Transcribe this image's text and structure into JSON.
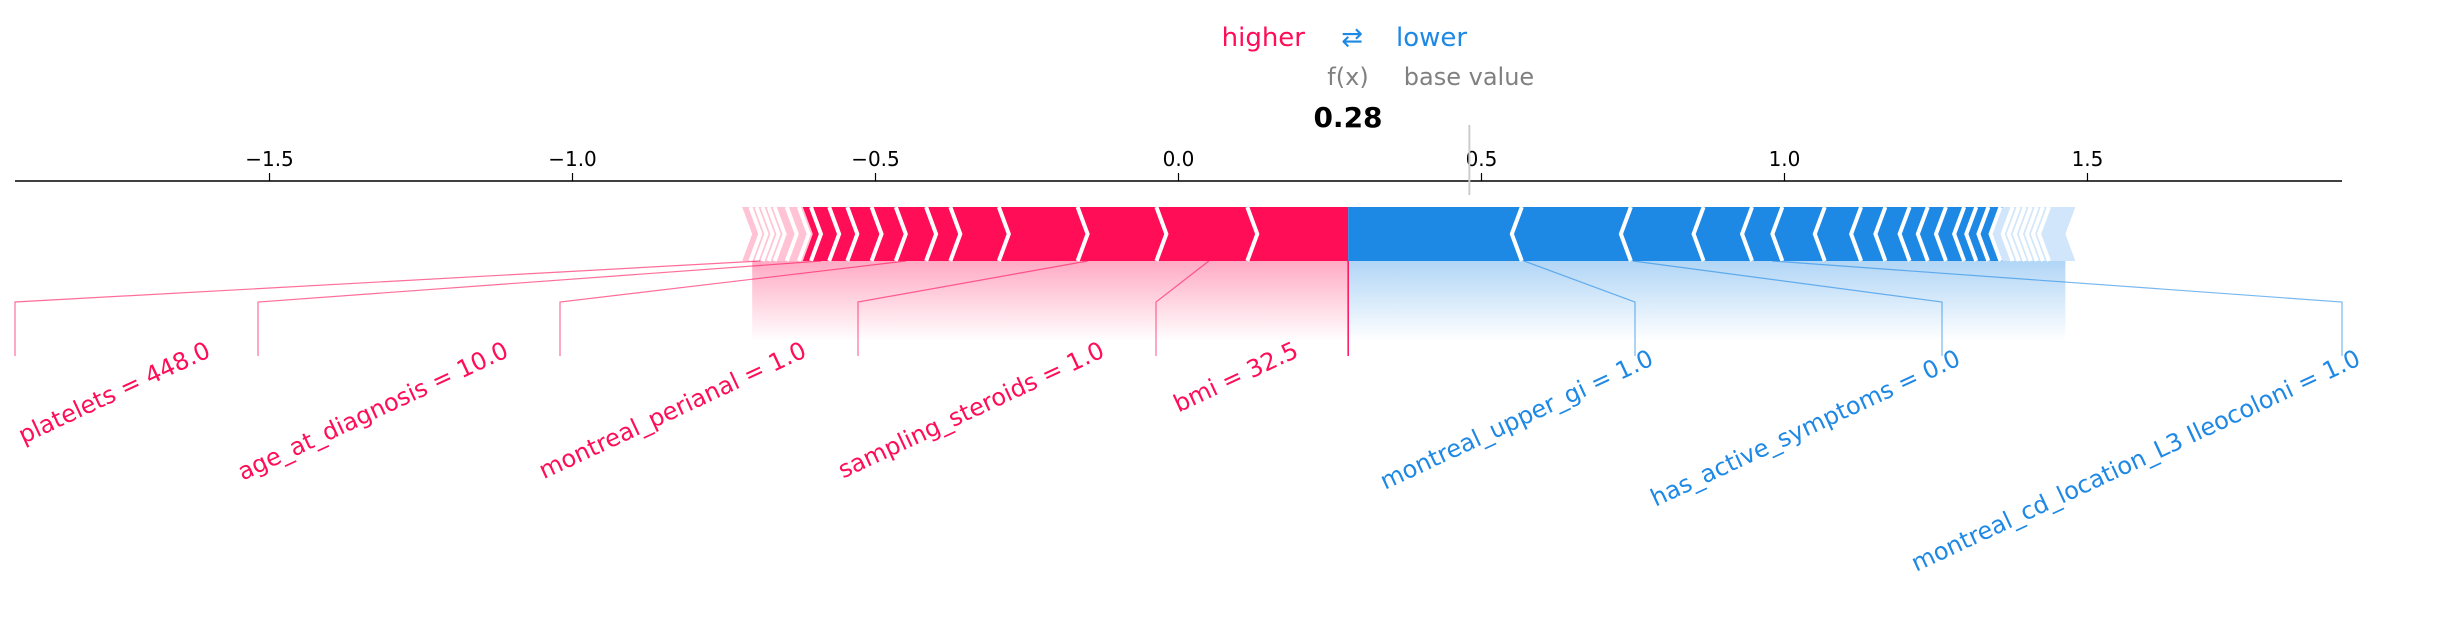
{
  "chart_data": {
    "type": "force",
    "legend": {
      "higher": "higher",
      "lower": "lower",
      "swap_symbol": "⇄"
    },
    "fx_label": "f(x)",
    "base_value_label": "base value",
    "fx_value": 0.28,
    "fx_value_text": "0.28",
    "base_value": 0.48,
    "xlim": [
      -1.92,
      1.92
    ],
    "ticks": [
      {
        "value": -1.5,
        "label": "−1.5"
      },
      {
        "value": -1.0,
        "label": "−1.0"
      },
      {
        "value": -0.5,
        "label": "−0.5"
      },
      {
        "value": 0.0,
        "label": "0.0"
      },
      {
        "value": 0.5,
        "label": "0.5"
      },
      {
        "value": 1.0,
        "label": "1.0"
      },
      {
        "value": 1.5,
        "label": "1.5"
      }
    ],
    "positive_total_start": -0.72,
    "negative_total_end": 1.48,
    "positive_boundaries": [
      -0.02,
      0.13,
      0.28
    ],
    "positive_extra_boundaries": [
      -0.28,
      -0.15,
      -0.36,
      -0.4,
      -0.45,
      -0.49,
      -0.53,
      -0.56,
      -0.59,
      -0.61,
      -0.63,
      -0.65,
      -0.66,
      -0.67,
      -0.68,
      -0.69
    ],
    "negative_boundaries": [
      0.55,
      0.73,
      0.85,
      0.93,
      1.05
    ],
    "negative_extra_boundaries": [
      0.98,
      1.11,
      1.15,
      1.19,
      1.22,
      1.25,
      1.28,
      1.3,
      1.32,
      1.34,
      1.36,
      1.37,
      1.38,
      1.39,
      1.4,
      1.41,
      1.42
    ],
    "positive_features": [
      {
        "label": "platelets = 448.0",
        "value": -0.69
      },
      {
        "label": "age_at_diagnosis = 10.0",
        "value": -0.59
      },
      {
        "label": "montreal_perianal = 1.0",
        "value": -0.45
      },
      {
        "label": "sampling_steroids = 1.0",
        "value": -0.15
      },
      {
        "label": "bmi = 32.5",
        "value": 0.05
      }
    ],
    "negative_features": [
      {
        "label": "montreal_upper_gi = 1.0",
        "value": 0.57
      },
      {
        "label": "has_active_symptoms = 0.0",
        "value": 0.75
      },
      {
        "label": "montreal_cd_location_L3 Ileocoloni = 1.0",
        "value": 0.98
      }
    ],
    "colors": {
      "positive": "#ff0d57",
      "positive_light": "#ffc3d5",
      "negative": "#1e88e5",
      "negative_light": "#d1e6fa",
      "axis": "#000000",
      "muted": "#808080"
    }
  }
}
